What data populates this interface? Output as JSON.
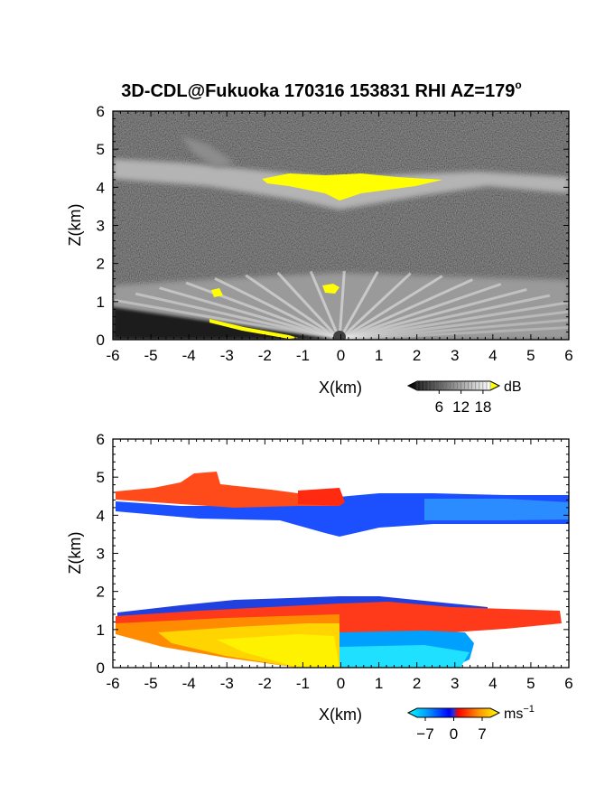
{
  "title": "3D-CDL@Fukuoka 170316 153831 RHI AZ=179",
  "title_degree": "o",
  "chart_data": [
    {
      "type": "heatmap",
      "name": "reflectivity",
      "xlabel": "X(km)",
      "ylabel": "Z(km)",
      "xlim": [
        -6,
        6
      ],
      "ylim": [
        0,
        6
      ],
      "x_ticks": [
        "-6",
        "-5",
        "-4",
        "-3",
        "-2",
        "-1",
        "0",
        "1",
        "2",
        "3",
        "4",
        "5",
        "6"
      ],
      "y_ticks": [
        "0",
        "1",
        "2",
        "3",
        "4",
        "5",
        "6"
      ],
      "colorbar": {
        "unit": "dB",
        "ticks": [
          "6",
          "12",
          "18"
        ],
        "tick_values": [
          6,
          12,
          18
        ],
        "range": [
          0,
          20
        ]
      },
      "layers": [
        {
          "feature": "upper cloud layer",
          "z_base_km": 4.0,
          "z_top_km": 4.6,
          "x_range_km": [
            -6,
            6
          ]
        },
        {
          "feature": "upper layer saturated core (>=18 dB)",
          "z_km": [
            3.7,
            4.3
          ],
          "x_range_km": [
            -1.8,
            2.8
          ]
        },
        {
          "feature": "lower layer",
          "z_base_km": 0.0,
          "z_top_km": 1.5,
          "x_range_km": [
            -6,
            6
          ]
        }
      ]
    },
    {
      "type": "heatmap",
      "name": "doppler_velocity",
      "xlabel": "X(km)",
      "ylabel": "Z(km)",
      "xlim": [
        -6,
        6
      ],
      "ylim": [
        0,
        6
      ],
      "x_ticks": [
        "-6",
        "-5",
        "-4",
        "-3",
        "-2",
        "-1",
        "0",
        "1",
        "2",
        "3",
        "4",
        "5",
        "6"
      ],
      "y_ticks": [
        "0",
        "1",
        "2",
        "3",
        "4",
        "5",
        "6"
      ],
      "colorbar": {
        "unit": "ms",
        "unit_exponent": "−1",
        "ticks": [
          "−7",
          "0",
          "7"
        ],
        "tick_values": [
          -7,
          0,
          7
        ],
        "range": [
          -9,
          9
        ]
      },
      "layers": [
        {
          "feature": "upper layer, positive velocity",
          "z_km": [
            4.2,
            4.6
          ],
          "x_range_km": [
            -6,
            0.5
          ],
          "velocity_ms": 4
        },
        {
          "feature": "upper layer, negative velocity",
          "z_km": [
            3.5,
            4.4
          ],
          "x_range_km": [
            -6,
            6
          ],
          "velocity_ms": -4
        },
        {
          "feature": "lower layer top, negative velocity",
          "z_km": [
            1.4,
            1.7
          ],
          "x_range_km": [
            -6,
            3.7
          ],
          "velocity_ms": -5
        },
        {
          "feature": "lower layer, positive velocity",
          "z_km": [
            1.0,
            1.5
          ],
          "x_range_km": [
            -6,
            6
          ],
          "velocity_ms": 4
        },
        {
          "feature": "lower layer near ground, strong positive",
          "z_km": [
            0.0,
            1.0
          ],
          "x_range_km": [
            -6,
            0
          ],
          "velocity_ms": 7
        },
        {
          "feature": "lower layer near ground, negative",
          "z_km": [
            0.0,
            0.9
          ],
          "x_range_km": [
            0,
            3.5
          ],
          "velocity_ms": -6
        }
      ]
    }
  ]
}
